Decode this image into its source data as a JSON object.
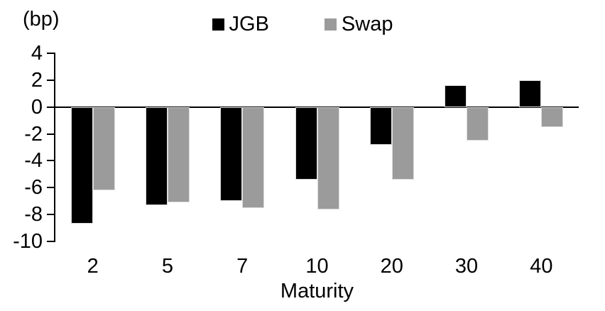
{
  "chart_data": {
    "type": "bar",
    "unit": "(bp)",
    "xlabel": "Maturity",
    "categories": [
      "2",
      "5",
      "7",
      "10",
      "20",
      "30",
      "40"
    ],
    "series": [
      {
        "name": "JGB",
        "color": "#000000",
        "values": [
          -8.7,
          -7.3,
          -7.0,
          -5.4,
          -2.8,
          1.6,
          2.0
        ]
      },
      {
        "name": "Swap",
        "color": "#9b9b9b",
        "values": [
          -6.2,
          -7.1,
          -7.5,
          -7.6,
          -5.4,
          -2.5,
          -1.5
        ]
      }
    ],
    "ylim": [
      -10,
      4
    ],
    "yticks": [
      4,
      2,
      0,
      -2,
      -4,
      -6,
      -8,
      -10
    ],
    "legend_position": "top-center",
    "grid": false,
    "axis_color": "#000000",
    "background_color": "#ffffff"
  }
}
